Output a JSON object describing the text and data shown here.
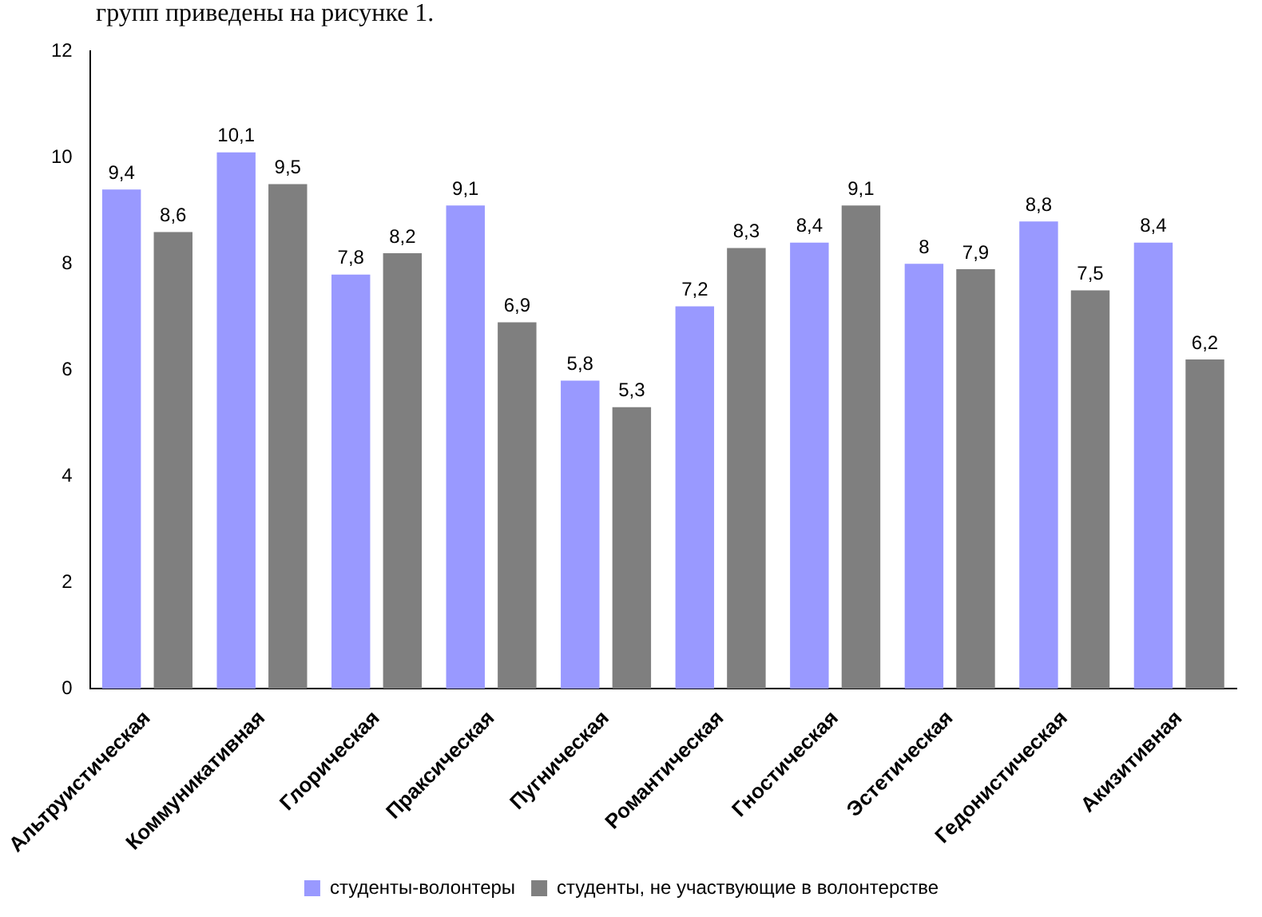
{
  "chart_data": {
    "type": "bar",
    "annotations": [
      "групп приведены на рисунке 1."
    ],
    "categories": [
      "Альтруистическая",
      "Коммуникативная",
      "Глорическая",
      "Праксическая",
      "Пугническая",
      "Романтическая",
      "Гностическая",
      "Эстетическая",
      "Гедонистическая",
      "Акизитивная"
    ],
    "series": [
      {
        "name": "студенты-волонтеры",
        "color": "#9999ff",
        "values": [
          9.4,
          10.1,
          7.8,
          9.1,
          5.8,
          7.2,
          8.4,
          8,
          8.8,
          8.4
        ],
        "value_labels": [
          "9,4",
          "10,1",
          "7,8",
          "9,1",
          "5,8",
          "7,2",
          "8,4",
          "8",
          "8,8",
          "8,4"
        ]
      },
      {
        "name": "студенты, не участвующие в волонтерстве",
        "color": "#7f7f7f",
        "values": [
          8.6,
          9.5,
          8.2,
          6.9,
          5.3,
          8.3,
          9.1,
          7.9,
          7.5,
          6.2
        ],
        "value_labels": [
          "8,6",
          "9,5",
          "8,2",
          "6,9",
          "5,3",
          "8,3",
          "9,1",
          "7,9",
          "7,5",
          "6,2"
        ]
      }
    ],
    "ylim": [
      0,
      12
    ],
    "yticks": [
      0,
      2,
      4,
      6,
      8,
      10,
      12
    ],
    "grid": false,
    "legend": "bottom"
  }
}
